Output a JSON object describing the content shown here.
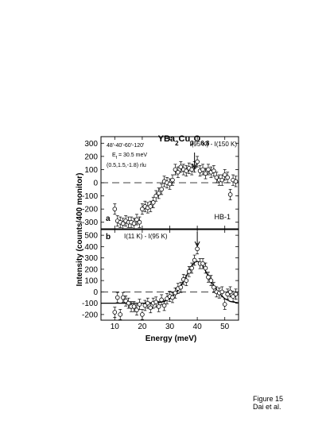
{
  "figure": {
    "caption_line1": "Figure 15",
    "caption_line2": "Dai et al.",
    "title": "YBa2Cu3O6.8",
    "ylabel": "Intensity (counts/400 monitor)",
    "xlabel": "Energy (meV)"
  },
  "chart_data": [
    {
      "type": "scatter",
      "panel_label": "a",
      "instrument": "HB-1",
      "annotation": "I(95 K) - I(150 K)",
      "info_lines": [
        "48'-40'-60'-120'",
        "Ef = 30.5 meV",
        "(0.5,1.5,-1.8) rlu"
      ],
      "arrow_at": 39,
      "xlim": [
        5,
        55
      ],
      "ylim": [
        -350,
        350
      ],
      "yticks": [
        300,
        200,
        100,
        0,
        -100,
        -200,
        -300
      ],
      "xticks": [],
      "baseline": 0,
      "series": [
        {
          "x": [
            10,
            11,
            12,
            13,
            14,
            15,
            16,
            17,
            18,
            19,
            20,
            21,
            22,
            23,
            24,
            25,
            26,
            27,
            28,
            29,
            30,
            31,
            32,
            33,
            34,
            35,
            36,
            37,
            38,
            39,
            40,
            41,
            42,
            43,
            44,
            45,
            46,
            47,
            48,
            49,
            50,
            51,
            52,
            53,
            54
          ],
          "y": [
            -200,
            -290,
            -300,
            -310,
            -290,
            -300,
            -300,
            -310,
            -280,
            -300,
            -200,
            -180,
            -190,
            -180,
            -150,
            -100,
            -80,
            -50,
            10,
            0,
            -10,
            20,
            100,
            80,
            120,
            100,
            90,
            110,
            100,
            120,
            160,
            90,
            100,
            70,
            100,
            80,
            90,
            40,
            20,
            20,
            60,
            40,
            -90,
            20,
            10
          ],
          "yerr": [
            40,
            40,
            40,
            40,
            40,
            40,
            40,
            40,
            40,
            40,
            40,
            40,
            40,
            40,
            40,
            40,
            40,
            40,
            40,
            40,
            40,
            40,
            40,
            40,
            40,
            40,
            40,
            40,
            40,
            40,
            40,
            40,
            40,
            40,
            40,
            40,
            40,
            40,
            40,
            40,
            40,
            40,
            40,
            40,
            40
          ]
        }
      ]
    },
    {
      "type": "scatter",
      "panel_label": "b",
      "annotation": "I(11 K) - I(95 K)",
      "arrow_at": 40,
      "xlim": [
        5,
        55
      ],
      "ylim": [
        -250,
        550
      ],
      "yticks": [
        500,
        400,
        300,
        200,
        100,
        0,
        -100,
        -200
      ],
      "xticks": [
        10,
        20,
        30,
        40,
        50
      ],
      "baseline": 0,
      "series": [
        {
          "x": [
            10,
            11,
            12,
            13,
            14,
            15,
            16,
            17,
            18,
            19,
            20,
            21,
            22,
            23,
            24,
            25,
            26,
            27,
            28,
            29,
            30,
            31,
            32,
            33,
            34,
            35,
            36,
            37,
            38,
            39,
            40,
            41,
            42,
            43,
            44,
            45,
            46,
            47,
            48,
            49,
            50,
            51,
            52,
            53,
            54
          ],
          "y": [
            -180,
            -50,
            -200,
            -50,
            -80,
            -100,
            -130,
            -130,
            -160,
            -110,
            -200,
            -120,
            -100,
            -140,
            -100,
            -90,
            -130,
            -70,
            -120,
            -60,
            -40,
            -50,
            -10,
            30,
            40,
            110,
            100,
            180,
            210,
            280,
            380,
            250,
            250,
            210,
            130,
            100,
            40,
            0,
            -10,
            0,
            -110,
            -20,
            0,
            -40,
            -20
          ],
          "yerr": [
            45,
            45,
            45,
            45,
            45,
            45,
            45,
            45,
            45,
            45,
            45,
            45,
            45,
            45,
            45,
            45,
            45,
            45,
            45,
            45,
            45,
            45,
            45,
            45,
            45,
            45,
            45,
            45,
            45,
            45,
            45,
            45,
            45,
            45,
            45,
            45,
            45,
            45,
            45,
            45,
            45,
            45,
            45,
            45,
            45
          ]
        }
      ],
      "fit_curve": {
        "x": [
          5,
          8,
          11,
          14,
          17,
          20,
          22,
          24,
          26,
          28,
          30,
          32,
          34,
          36,
          38,
          39,
          40,
          41,
          42,
          44,
          46,
          48,
          50,
          52,
          55
        ],
        "y": [
          -100,
          -100,
          -100,
          -100,
          -100,
          -100,
          -100,
          -98,
          -95,
          -85,
          -60,
          -15,
          50,
          140,
          230,
          260,
          270,
          260,
          230,
          140,
          50,
          -15,
          -60,
          -85,
          -98
        ]
      }
    }
  ]
}
